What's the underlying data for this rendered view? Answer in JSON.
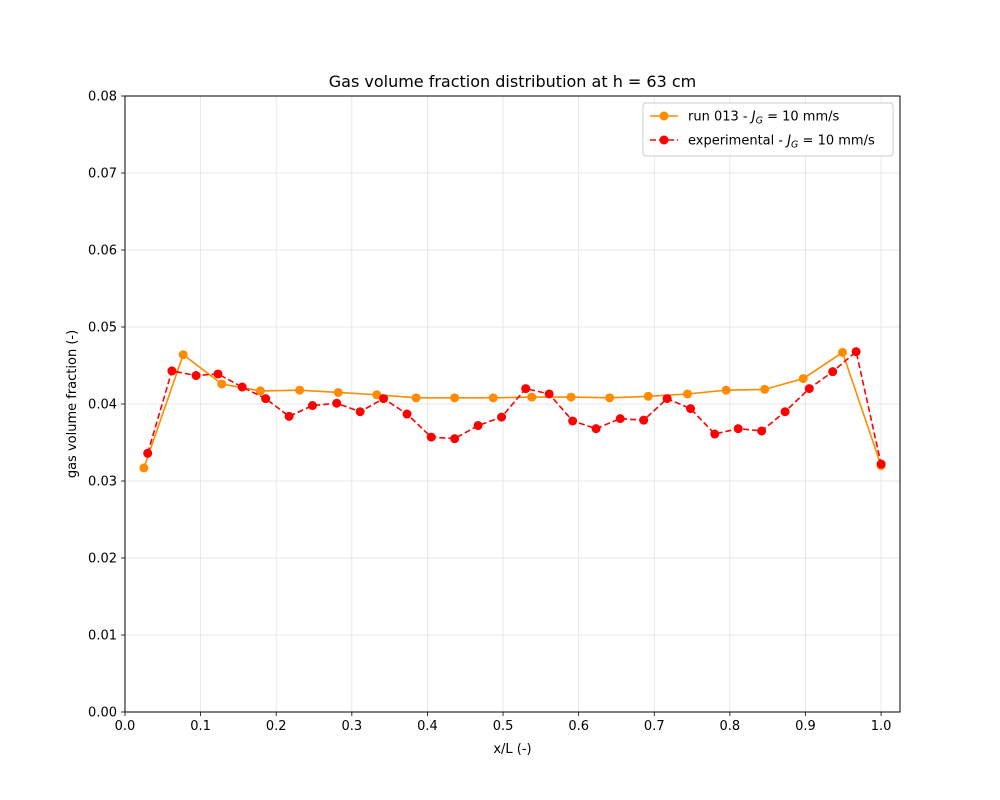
{
  "chart_data": {
    "type": "line",
    "title": "Gas volume fraction distribution at h = 63 cm",
    "xlabel": "x/L (-)",
    "ylabel": "gas volume fraction (-)",
    "xlim": [
      0.0,
      1.025
    ],
    "ylim": [
      0.0,
      0.08
    ],
    "xticks": [
      "0.0",
      "0.1",
      "0.2",
      "0.3",
      "0.4",
      "0.5",
      "0.6",
      "0.7",
      "0.8",
      "0.9",
      "1.0"
    ],
    "yticks": [
      "0.00",
      "0.01",
      "0.02",
      "0.03",
      "0.04",
      "0.05",
      "0.06",
      "0.07",
      "0.08"
    ],
    "grid": true,
    "legend_position": "top-right",
    "series": [
      {
        "name": "run 013 - J_G = 10 mm/s",
        "legend_prefix": "run 013 - ",
        "legend_var": "J",
        "legend_sub": "G",
        "legend_suffix": " = 10 mm/s",
        "color": "#ff8c00",
        "line_style": "solid",
        "x": [
          0.025,
          0.077,
          0.128,
          0.179,
          0.231,
          0.282,
          0.333,
          0.385,
          0.436,
          0.487,
          0.538,
          0.59,
          0.641,
          0.692,
          0.744,
          0.795,
          0.846,
          0.897,
          0.949,
          1.0
        ],
        "y": [
          0.0317,
          0.0464,
          0.0426,
          0.0417,
          0.0418,
          0.0415,
          0.0412,
          0.0408,
          0.0408,
          0.0408,
          0.0409,
          0.0409,
          0.0408,
          0.041,
          0.0413,
          0.0418,
          0.0419,
          0.0433,
          0.0467,
          0.032
        ]
      },
      {
        "name": "experimental - J_G = 10 mm/s",
        "legend_prefix": "experimental - ",
        "legend_var": "J",
        "legend_sub": "G",
        "legend_suffix": " = 10 mm/s",
        "color": "#ff0000",
        "line_style": "dashed",
        "x": [
          0.03,
          0.062,
          0.094,
          0.123,
          0.155,
          0.186,
          0.217,
          0.248,
          0.28,
          0.311,
          0.342,
          0.373,
          0.405,
          0.436,
          0.467,
          0.498,
          0.53,
          0.561,
          0.592,
          0.623,
          0.655,
          0.686,
          0.717,
          0.748,
          0.78,
          0.811,
          0.842,
          0.873,
          0.905,
          0.936,
          0.967,
          1.0
        ],
        "y": [
          0.0336,
          0.0443,
          0.0437,
          0.0439,
          0.0422,
          0.0407,
          0.0384,
          0.0398,
          0.0401,
          0.039,
          0.0407,
          0.0387,
          0.0357,
          0.0355,
          0.0372,
          0.0383,
          0.042,
          0.0413,
          0.0378,
          0.0368,
          0.0381,
          0.0379,
          0.0407,
          0.0394,
          0.0361,
          0.0368,
          0.0365,
          0.039,
          0.042,
          0.0442,
          0.0468,
          0.0322
        ]
      }
    ]
  }
}
